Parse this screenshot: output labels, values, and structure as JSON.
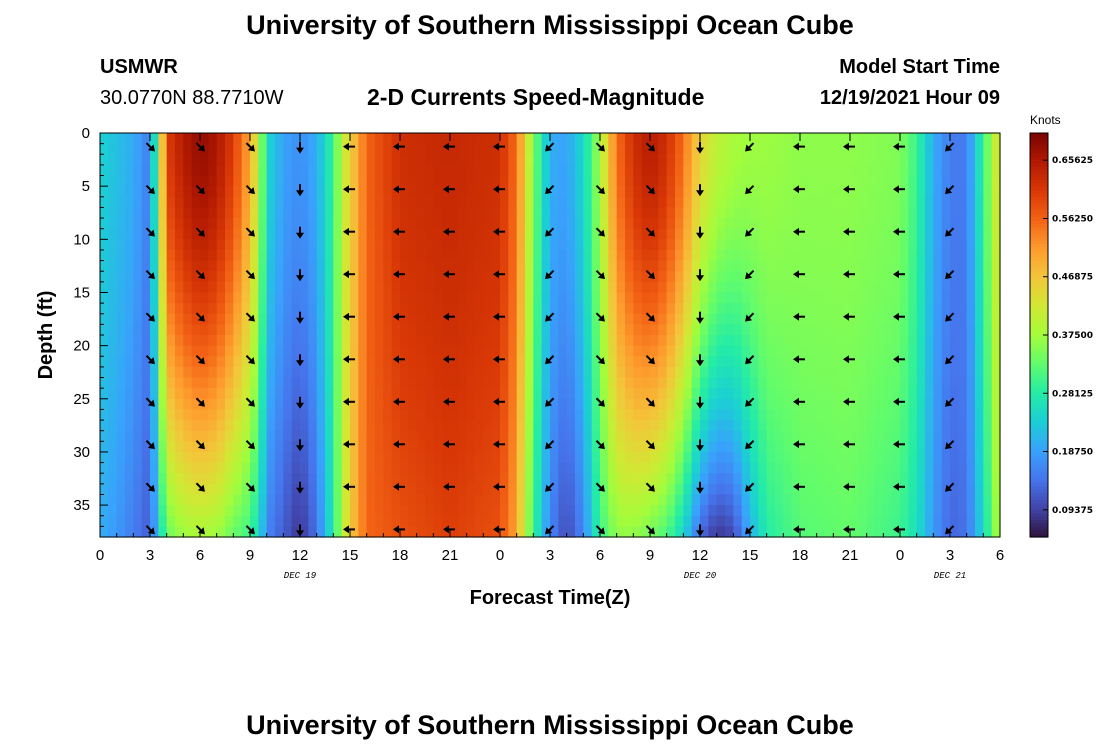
{
  "header": {
    "title": "University of Southern Mississippi Ocean Cube",
    "station": "USMWR",
    "coords": "30.0770N  88.7710W",
    "subtitle": "2-D Currents Speed-Magnitude",
    "model_label": "Model Start Time",
    "model_time": "12/19/2021 Hour 09"
  },
  "footer": {
    "title": "University of Southern Mississippi Ocean Cube"
  },
  "chart_data": {
    "type": "heatmap",
    "title": "2-D Currents Speed-Magnitude",
    "xlabel": "Forecast Time(Z)",
    "ylabel": "Depth (ft)",
    "x_ticks": [
      "0",
      "3",
      "6",
      "9",
      "12",
      "15",
      "18",
      "21",
      "0",
      "3",
      "6",
      "9",
      "12",
      "15",
      "18",
      "21",
      "0",
      "3",
      "6"
    ],
    "x_range_hours": [
      0,
      54
    ],
    "date_labels": [
      {
        "hour": 12,
        "label": "DEC 19"
      },
      {
        "hour": 36,
        "label": "DEC 20"
      },
      {
        "hour": 51,
        "label": "DEC 21"
      }
    ],
    "y_ticks": [
      0,
      5,
      10,
      15,
      20,
      25,
      30,
      35
    ],
    "ylim": [
      0,
      38
    ],
    "colorbar": {
      "unit": "Knots",
      "ticks": [
        "0.65625",
        "0.56250",
        "0.46875",
        "0.37500",
        "0.28125",
        "0.18750",
        "0.09375"
      ],
      "range": [
        0.05,
        0.7
      ],
      "colors": [
        "#30123b",
        "#4145ab",
        "#4675ed",
        "#39a2fc",
        "#1bcfd4",
        "#24eca6",
        "#61fc6c",
        "#a4fc3b",
        "#d1e834",
        "#f3c63a",
        "#fe9b2d",
        "#f36315",
        "#d93806",
        "#b11901",
        "#7a0402"
      ]
    },
    "speed_profile": {
      "hours": [
        0,
        1,
        2,
        3,
        3.6,
        4,
        5,
        6,
        7,
        8,
        9,
        9.6,
        10,
        11,
        12,
        13,
        14,
        14.5,
        15,
        16,
        18,
        21,
        24,
        25,
        26,
        27,
        28,
        29,
        30,
        31,
        32,
        33,
        34,
        35,
        36,
        37,
        38,
        39,
        40,
        42,
        45,
        48,
        49,
        50,
        51,
        52,
        53,
        54
      ],
      "surface": [
        0.24,
        0.22,
        0.2,
        0.15,
        0.4,
        0.6,
        0.65,
        0.68,
        0.66,
        0.6,
        0.5,
        0.38,
        0.25,
        0.19,
        0.17,
        0.2,
        0.3,
        0.4,
        0.45,
        0.56,
        0.62,
        0.63,
        0.62,
        0.55,
        0.35,
        0.2,
        0.19,
        0.25,
        0.38,
        0.55,
        0.62,
        0.65,
        0.62,
        0.55,
        0.45,
        0.4,
        0.38,
        0.37,
        0.37,
        0.36,
        0.36,
        0.35,
        0.3,
        0.2,
        0.15,
        0.15,
        0.3,
        0.45
      ],
      "bottom": [
        0.2,
        0.18,
        0.15,
        0.12,
        0.25,
        0.33,
        0.37,
        0.38,
        0.37,
        0.33,
        0.3,
        0.24,
        0.16,
        0.12,
        0.08,
        0.14,
        0.28,
        0.38,
        0.46,
        0.56,
        0.58,
        0.6,
        0.58,
        0.5,
        0.3,
        0.16,
        0.1,
        0.16,
        0.3,
        0.36,
        0.36,
        0.34,
        0.31,
        0.24,
        0.13,
        0.08,
        0.1,
        0.2,
        0.28,
        0.32,
        0.33,
        0.3,
        0.26,
        0.18,
        0.13,
        0.14,
        0.25,
        0.4
      ]
    },
    "vectors": [
      {
        "hour": 3,
        "dir": "SE"
      },
      {
        "hour": 6,
        "dir": "SE"
      },
      {
        "hour": 9,
        "dir": "SE"
      },
      {
        "hour": 12,
        "dir": "S"
      },
      {
        "hour": 15,
        "dir": "W"
      },
      {
        "hour": 18,
        "dir": "W"
      },
      {
        "hour": 21,
        "dir": "W"
      },
      {
        "hour": 24,
        "dir": "W"
      },
      {
        "hour": 27,
        "dir": "SW"
      },
      {
        "hour": 30,
        "dir": "SE"
      },
      {
        "hour": 33,
        "dir": "SE"
      },
      {
        "hour": 36,
        "dir": "S"
      },
      {
        "hour": 39,
        "dir": "SW"
      },
      {
        "hour": 42,
        "dir": "W"
      },
      {
        "hour": 45,
        "dir": "W"
      },
      {
        "hour": 48,
        "dir": "W"
      },
      {
        "hour": 51,
        "dir": "SW"
      }
    ],
    "vector_depths_ft": [
      0,
      4,
      8,
      12,
      16,
      20,
      24,
      28,
      32,
      36
    ]
  }
}
